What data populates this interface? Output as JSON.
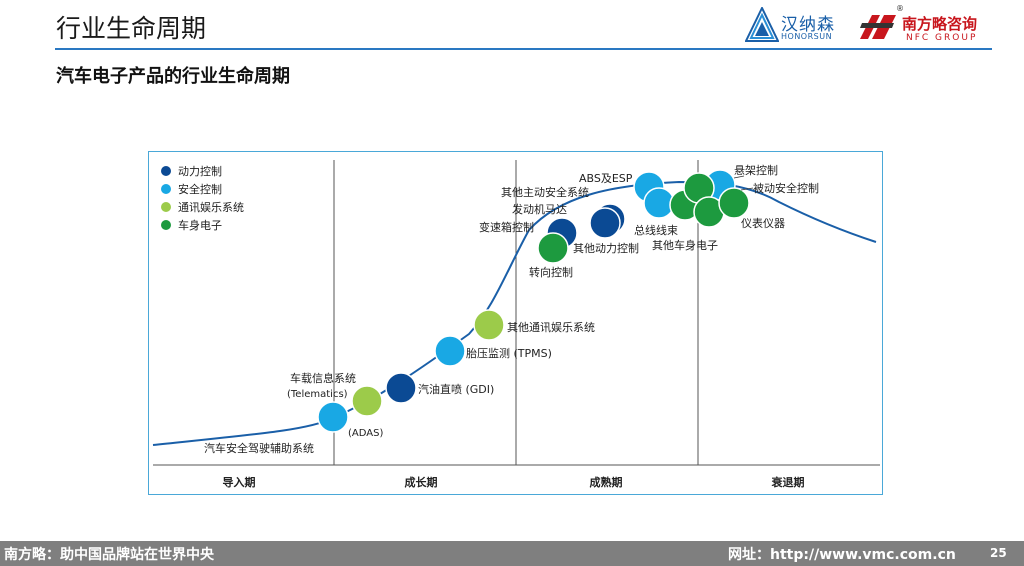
{
  "header": {
    "title": "行业生命周期"
  },
  "logos": {
    "honorsun_cn": "汉纳森",
    "honorsun_en": "HONORSUN",
    "nfc_cn": "南方略咨询",
    "nfc_en": "NFC GROUP",
    "nfc_reg": "®"
  },
  "subtitle": "汽车电子产品的行业生命周期",
  "diagram": {
    "legend": [
      {
        "label": "动力控制",
        "color": "#0b4a94"
      },
      {
        "label": "安全控制",
        "color": "#19a8e4"
      },
      {
        "label": "通讯娱乐系统",
        "color": "#9ccb4a"
      },
      {
        "label": "车身电子",
        "color": "#1d9a3f"
      }
    ],
    "phases": [
      "导入期",
      "成长期",
      "成熟期",
      "衰退期"
    ],
    "labels": [
      "汽车安全驾驶辅助系统",
      "(ADAS)",
      "车载信息系统",
      "(Telematics)",
      "汽油直喷 (GDI)",
      "胎压监测 (TPMS)",
      "其他通讯娱乐系统",
      "变速箱控制",
      "转向控制",
      "发动机马达",
      "其他主动安全系统",
      "ABS及ESP",
      "总线线束",
      "其他动力控制",
      "其他车身电子",
      "悬架控制",
      "被动安全控制",
      "仪表仪器"
    ]
  },
  "footer": {
    "slogan": "南方略：助中国品牌站在世界中央",
    "site": "网址：http://www.vmc.com.cn",
    "page": "25"
  }
}
